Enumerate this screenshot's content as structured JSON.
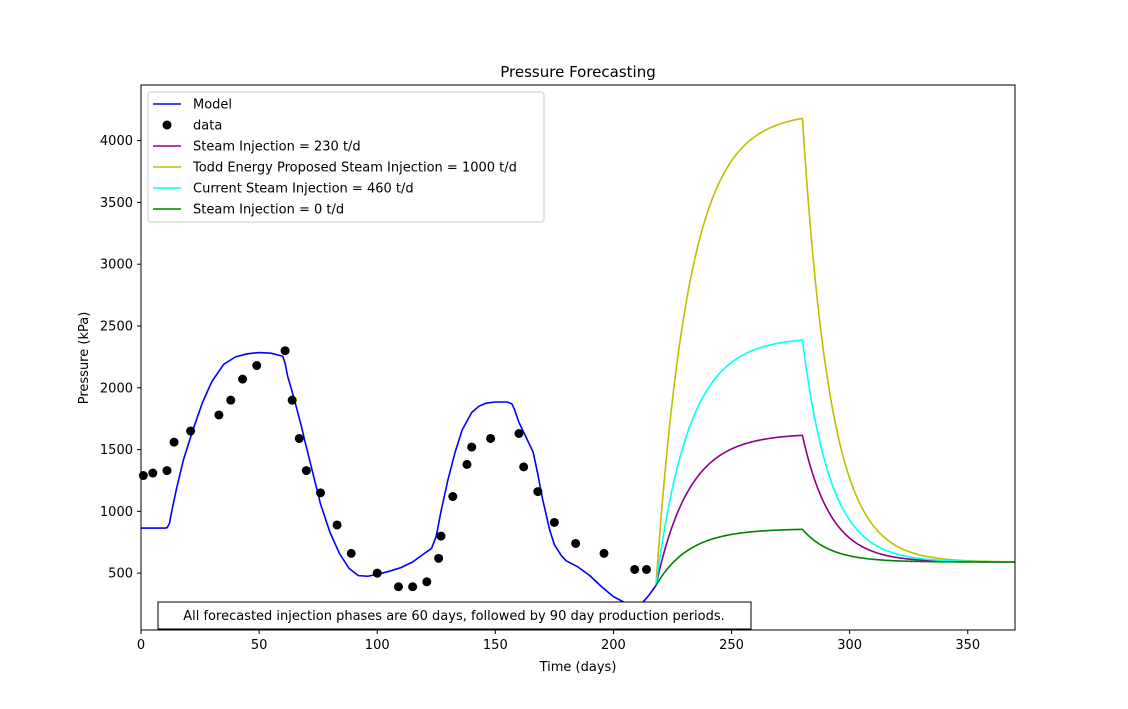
{
  "chart_data": {
    "type": "line",
    "title": "Pressure Forecasting",
    "xlabel": "Time (days)",
    "ylabel": "Pressure (kPa)",
    "xlim": [
      0,
      370
    ],
    "ylim": [
      40,
      4450
    ],
    "xticks": [
      0,
      50,
      100,
      150,
      200,
      250,
      300,
      350
    ],
    "yticks": [
      500,
      1000,
      1500,
      2000,
      2500,
      3000,
      3500,
      4000
    ],
    "grid": false,
    "legend_position": "upper-left",
    "annotation": "All forecasted injection phases are 60 days, followed by 90 day production periods.",
    "series": [
      {
        "name": "Model",
        "kind": "line",
        "color": "#0000ff",
        "x": [
          0,
          5,
          10,
          11,
          12,
          13,
          15,
          18,
          22,
          26,
          30,
          35,
          40,
          45,
          50,
          55,
          60,
          61,
          62,
          65,
          68,
          70,
          73,
          76,
          80,
          84,
          88,
          92,
          96,
          100,
          105,
          110,
          115,
          120,
          123,
          125,
          127,
          130,
          133,
          136,
          140,
          143,
          146,
          150,
          155,
          157,
          158,
          160,
          163,
          166,
          168,
          170,
          173,
          175,
          178,
          180,
          185,
          190,
          195,
          200,
          205,
          210,
          212,
          215,
          218
        ],
        "y": [
          865,
          865,
          865,
          867,
          900,
          1000,
          1180,
          1420,
          1660,
          1880,
          2050,
          2190,
          2250,
          2275,
          2285,
          2280,
          2255,
          2200,
          2100,
          1900,
          1680,
          1520,
          1290,
          1060,
          830,
          660,
          540,
          480,
          475,
          490,
          515,
          545,
          590,
          660,
          700,
          800,
          1000,
          1260,
          1480,
          1660,
          1800,
          1850,
          1875,
          1885,
          1885,
          1870,
          1830,
          1720,
          1600,
          1480,
          1300,
          1100,
          850,
          730,
          640,
          600,
          550,
          480,
          390,
          310,
          260,
          240,
          255,
          320,
          400
        ]
      },
      {
        "name": "data",
        "kind": "scatter",
        "color": "#000000",
        "x": [
          1,
          5,
          11,
          14,
          21,
          33,
          38,
          43,
          49,
          61,
          64,
          67,
          70,
          76,
          83,
          89,
          100,
          109,
          115,
          121,
          126,
          127,
          132,
          138,
          140,
          148,
          160,
          162,
          168,
          175,
          184,
          196,
          209,
          214
        ],
        "y": [
          1290,
          1310,
          1330,
          1560,
          1650,
          1780,
          1900,
          2070,
          2180,
          2300,
          1900,
          1590,
          1330,
          1150,
          890,
          660,
          500,
          390,
          390,
          430,
          620,
          800,
          1120,
          1380,
          1520,
          1590,
          1630,
          1360,
          1160,
          910,
          740,
          660,
          530,
          530
        ]
      },
      {
        "name": "Steam Injection = 230 t/d",
        "kind": "line",
        "color": "#8b008b",
        "plateau": 1630,
        "tau_rise": 14,
        "tau_decline": 12,
        "final": 590
      },
      {
        "name": "Todd Energy Proposed Steam Injection = 1000 t/d",
        "kind": "line",
        "color": "#bfbf00",
        "plateau": 4225,
        "tau_rise": 14,
        "tau_decline": 12,
        "final": 590
      },
      {
        "name": "Current Steam Injection = 460 t/d",
        "kind": "line",
        "color": "#00ffff",
        "plateau": 2410,
        "tau_rise": 14,
        "tau_decline": 12,
        "final": 590
      },
      {
        "name": "Steam Injection = 0 t/d",
        "kind": "line",
        "color": "#008000",
        "plateau": 860,
        "tau_rise": 14,
        "tau_decline": 12,
        "final": 590
      }
    ],
    "forecast_start": {
      "x": 218,
      "y": 400
    },
    "forecast_injection_end": 280,
    "forecast_end": 370
  }
}
